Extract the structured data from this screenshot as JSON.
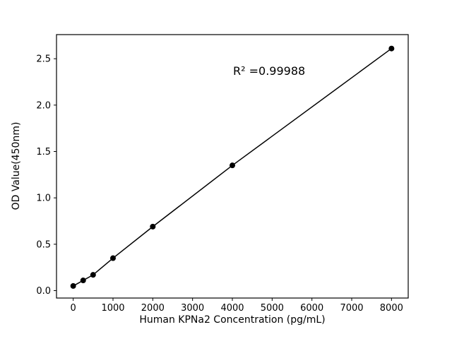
{
  "figure": {
    "background": "#ffffff"
  },
  "annotation": {
    "r2_text": "R² =0.99988"
  },
  "chart_data": {
    "type": "scatter",
    "title": "",
    "xlabel": "Human KPNa2 Concentration (pg/mL)",
    "ylabel": "OD Value(450nm)",
    "x": [
      0,
      250,
      500,
      1000,
      2000,
      4000,
      8000
    ],
    "y": [
      0.05,
      0.11,
      0.17,
      0.35,
      0.69,
      1.35,
      2.61
    ],
    "line": true,
    "line_color": "#000000",
    "marker_color": "#000000",
    "marker_radius": 4,
    "xlim": [
      -420,
      8420
    ],
    "ylim": [
      -0.08,
      2.76
    ],
    "xticks": [
      0,
      1000,
      2000,
      3000,
      4000,
      5000,
      6000,
      7000,
      8000
    ],
    "yticks": [
      0.0,
      0.5,
      1.0,
      1.5,
      2.0,
      2.5
    ],
    "grid": false,
    "legend": "none",
    "annotation_text": "R² =0.99988",
    "annotation_xy": [
      4000,
      2.38
    ]
  }
}
